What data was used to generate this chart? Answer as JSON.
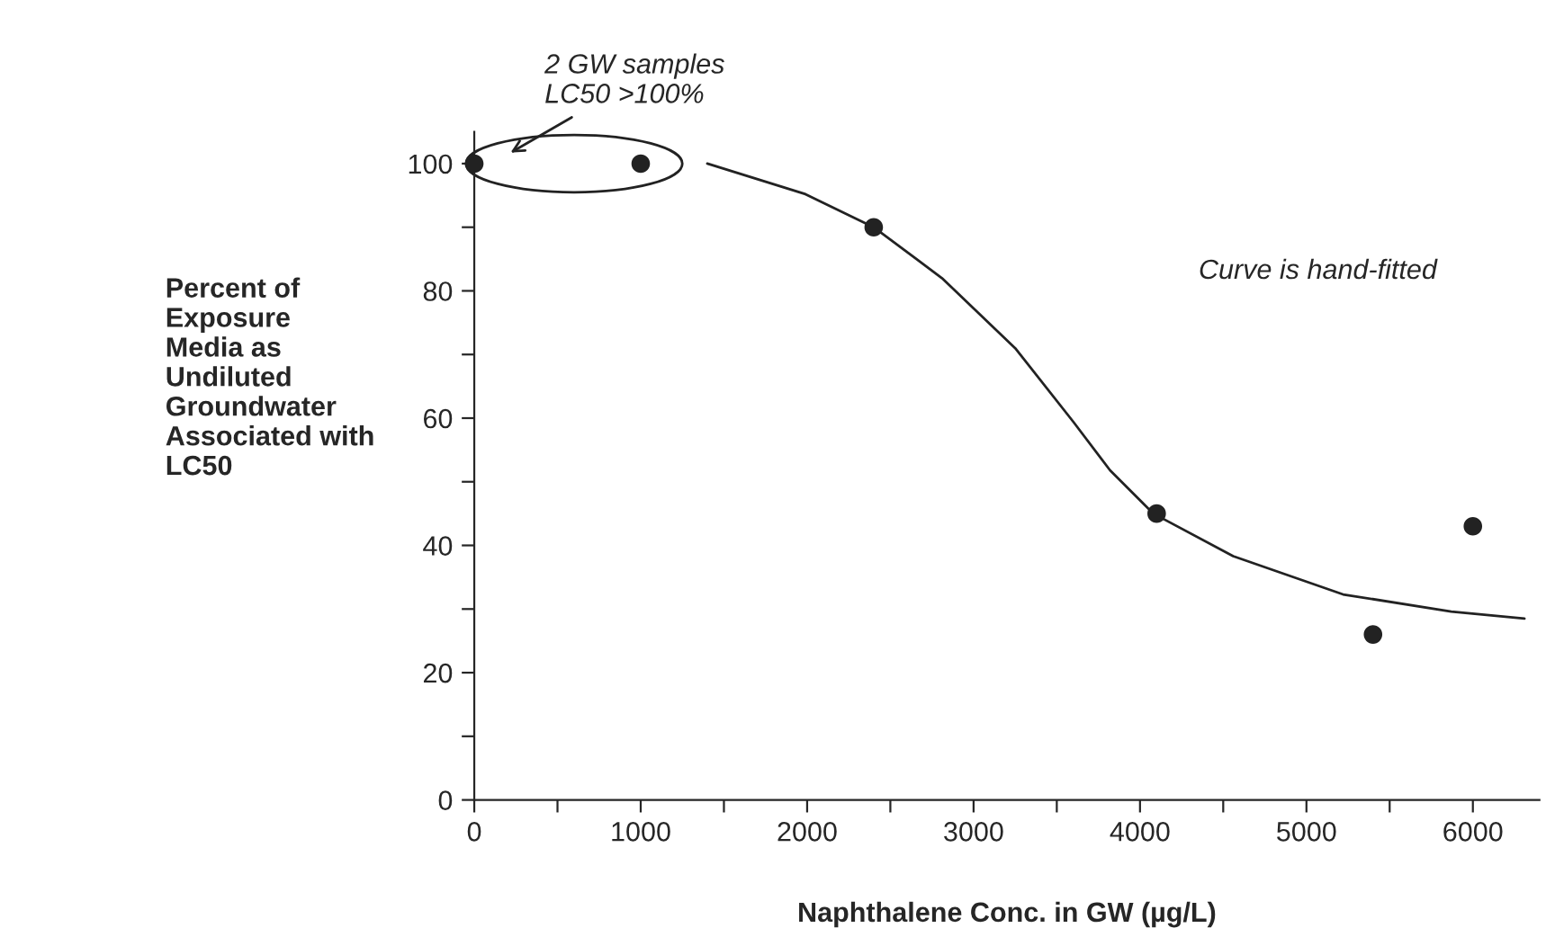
{
  "chart_data": {
    "type": "scatter",
    "xlabel": "Naphthalene Conc. in GW (µg/L)",
    "ylabel": "Percent of\nExposure\nMedia as\nUndiluted\nGroundwater\nAssociated with\nLC50",
    "x": [
      0,
      1000,
      2400,
      4100,
      5400,
      6000
    ],
    "series": [
      {
        "color": "#222222",
        "marker": "circle",
        "values": [
          100,
          100,
          90,
          45,
          26,
          43
        ]
      },
      {
        "type": "line",
        "color": "#222222",
        "marker": "none",
        "line_style": "solid",
        "x": [
          1400,
          1990,
          2400,
          2810,
          3250,
          3600,
          3820,
          4080,
          4560,
          5220,
          5870,
          6310
        ],
        "values": [
          100,
          95.2,
          90,
          82,
          71,
          59.4,
          51.8,
          45,
          38.3,
          32.3,
          29.6,
          28.5
        ]
      }
    ],
    "xlim": [
      0,
      6400
    ],
    "ylim": [
      0,
      105
    ],
    "xticks": [
      0,
      {
        "value": 500,
        "label": null
      },
      1000,
      {
        "value": 1500,
        "label": null
      },
      2000,
      {
        "value": 2500,
        "label": null
      },
      3000,
      {
        "value": 3500,
        "label": null
      },
      4000,
      {
        "value": 4500,
        "label": null
      },
      5000,
      {
        "value": 5500,
        "label": null
      },
      6000
    ],
    "yticks": [
      0,
      {
        "value": 10,
        "label": null
      },
      20,
      {
        "value": 30,
        "label": null
      },
      40,
      {
        "value": 50,
        "label": null
      },
      60,
      {
        "value": 70,
        "label": null
      },
      80,
      {
        "value": 90,
        "label": null
      },
      100
    ],
    "annotations": [
      "2 GW samples\nLC50 >100%",
      "Curve is hand-fitted"
    ],
    "grid": false,
    "legend": false
  }
}
